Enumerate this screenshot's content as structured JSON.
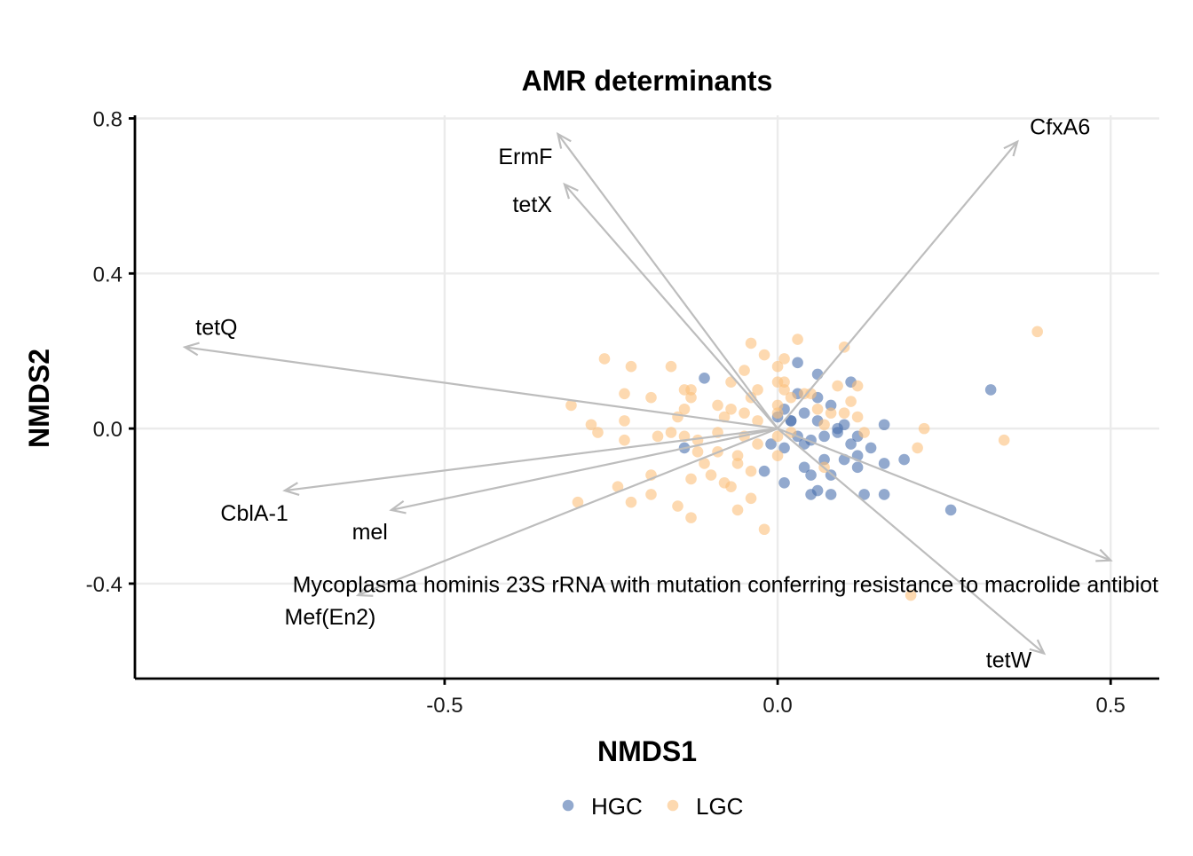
{
  "chart_data": {
    "type": "scatter",
    "title": "AMR determinants",
    "xlabel": "NMDS1",
    "ylabel": "NMDS2",
    "xlim": [
      -0.965,
      0.573
    ],
    "ylim": [
      -0.645,
      0.808
    ],
    "xticks": [
      {
        "value": -0.5,
        "label": "-0.5"
      },
      {
        "value": 0.0,
        "label": "0.0"
      },
      {
        "value": 0.5,
        "label": "0.5"
      }
    ],
    "yticks": [
      {
        "value": 0.8,
        "label": "0.8"
      },
      {
        "value": 0.4,
        "label": "0.4"
      },
      {
        "value": 0.0,
        "label": "0.0"
      },
      {
        "value": -0.4,
        "label": "-0.4"
      }
    ],
    "grid": true,
    "legend": {
      "position": "bottom"
    },
    "series": [
      {
        "name": "HGC",
        "color": "#4a6fad",
        "points": [
          [
            -0.11,
            0.13
          ],
          [
            0.03,
            0.17
          ],
          [
            0.06,
            0.14
          ],
          [
            0.11,
            0.12
          ],
          [
            0.32,
            0.1
          ],
          [
            0.03,
            0.09
          ],
          [
            0.06,
            0.08
          ],
          [
            0.08,
            0.06
          ],
          [
            0.01,
            0.05
          ],
          [
            0.04,
            0.04
          ],
          [
            0.0,
            0.03
          ],
          [
            0.02,
            0.02
          ],
          [
            0.06,
            0.02
          ],
          [
            0.1,
            0.01
          ],
          [
            0.16,
            0.01
          ],
          [
            0.09,
            -0.01
          ],
          [
            0.12,
            -0.02
          ],
          [
            0.03,
            -0.02
          ],
          [
            0.05,
            -0.03
          ],
          [
            0.07,
            -0.02
          ],
          [
            0.14,
            -0.05
          ],
          [
            -0.14,
            -0.05
          ],
          [
            -0.01,
            -0.04
          ],
          [
            0.04,
            -0.04
          ],
          [
            0.11,
            -0.04
          ],
          [
            0.01,
            -0.05
          ],
          [
            0.07,
            -0.08
          ],
          [
            0.1,
            -0.08
          ],
          [
            0.12,
            -0.07
          ],
          [
            0.19,
            -0.08
          ],
          [
            0.16,
            -0.09
          ],
          [
            0.04,
            -0.1
          ],
          [
            0.12,
            -0.1
          ],
          [
            -0.02,
            -0.11
          ],
          [
            0.05,
            -0.12
          ],
          [
            0.08,
            -0.12
          ],
          [
            0.01,
            -0.14
          ],
          [
            0.06,
            -0.16
          ],
          [
            0.08,
            -0.17
          ],
          [
            0.05,
            -0.17
          ],
          [
            0.13,
            -0.17
          ],
          [
            0.16,
            -0.17
          ],
          [
            0.26,
            -0.21
          ],
          [
            0.02,
            0.02
          ],
          [
            0.09,
            0.0
          ]
        ]
      },
      {
        "name": "LGC",
        "color": "#fcc07c",
        "points": [
          [
            0.39,
            0.25
          ],
          [
            0.03,
            0.23
          ],
          [
            -0.04,
            0.22
          ],
          [
            0.1,
            0.21
          ],
          [
            -0.26,
            0.18
          ],
          [
            -0.02,
            0.19
          ],
          [
            0.01,
            0.18
          ],
          [
            -0.22,
            0.16
          ],
          [
            -0.16,
            0.16
          ],
          [
            0.0,
            0.16
          ],
          [
            -0.05,
            0.15
          ],
          [
            -0.07,
            0.12
          ],
          [
            0.0,
            0.12
          ],
          [
            0.01,
            0.12
          ],
          [
            0.09,
            0.11
          ],
          [
            -0.14,
            0.1
          ],
          [
            -0.13,
            0.1
          ],
          [
            -0.03,
            0.1
          ],
          [
            0.12,
            0.11
          ],
          [
            -0.23,
            0.09
          ],
          [
            -0.19,
            0.08
          ],
          [
            0.01,
            0.1
          ],
          [
            0.04,
            0.09
          ],
          [
            0.05,
            0.09
          ],
          [
            0.02,
            0.08
          ],
          [
            -0.13,
            0.08
          ],
          [
            -0.04,
            0.08
          ],
          [
            0.11,
            0.07
          ],
          [
            -0.31,
            0.06
          ],
          [
            -0.09,
            0.06
          ],
          [
            -0.14,
            0.05
          ],
          [
            -0.07,
            0.05
          ],
          [
            0.0,
            0.06
          ],
          [
            0.08,
            0.04
          ],
          [
            -0.28,
            0.01
          ],
          [
            -0.23,
            0.02
          ],
          [
            -0.15,
            0.03
          ],
          [
            -0.05,
            0.04
          ],
          [
            0.0,
            0.04
          ],
          [
            0.1,
            0.04
          ],
          [
            0.12,
            0.03
          ],
          [
            -0.27,
            -0.01
          ],
          [
            -0.16,
            -0.01
          ],
          [
            -0.09,
            -0.01
          ],
          [
            0.02,
            -0.01
          ],
          [
            0.07,
            0.01
          ],
          [
            0.22,
            0.0
          ],
          [
            -0.23,
            -0.03
          ],
          [
            -0.14,
            -0.02
          ],
          [
            -0.12,
            -0.03
          ],
          [
            -0.05,
            -0.02
          ],
          [
            0.0,
            -0.02
          ],
          [
            -0.03,
            -0.04
          ],
          [
            0.34,
            -0.03
          ],
          [
            0.21,
            -0.05
          ],
          [
            -0.12,
            -0.06
          ],
          [
            -0.09,
            -0.06
          ],
          [
            -0.06,
            -0.07
          ],
          [
            0.0,
            -0.07
          ],
          [
            -0.11,
            -0.09
          ],
          [
            -0.06,
            -0.09
          ],
          [
            -0.04,
            -0.11
          ],
          [
            -0.19,
            -0.12
          ],
          [
            -0.1,
            -0.12
          ],
          [
            0.07,
            -0.1
          ],
          [
            -0.13,
            -0.13
          ],
          [
            -0.08,
            -0.14
          ],
          [
            -0.24,
            -0.15
          ],
          [
            -0.19,
            -0.17
          ],
          [
            -0.07,
            -0.15
          ],
          [
            -0.3,
            -0.19
          ],
          [
            -0.22,
            -0.19
          ],
          [
            -0.15,
            -0.2
          ],
          [
            -0.04,
            -0.18
          ],
          [
            -0.06,
            -0.21
          ],
          [
            -0.13,
            -0.23
          ],
          [
            -0.02,
            -0.26
          ],
          [
            0.2,
            -0.43
          ],
          [
            -0.03,
            0.02
          ],
          [
            0.06,
            0.05
          ],
          [
            -0.08,
            0.03
          ],
          [
            -0.18,
            -0.02
          ],
          [
            0.13,
            -0.01
          ]
        ]
      }
    ],
    "vectors": [
      {
        "label": "ErmF",
        "x": -0.33,
        "y": 0.76
      },
      {
        "label": "tetX",
        "x": -0.32,
        "y": 0.63
      },
      {
        "label": "CfxA6",
        "x": 0.36,
        "y": 0.74
      },
      {
        "label": "tetQ",
        "x": -0.89,
        "y": 0.21
      },
      {
        "label": "CblA-1",
        "x": -0.74,
        "y": -0.16
      },
      {
        "label": "mel",
        "x": -0.58,
        "y": -0.21
      },
      {
        "label": "Mycoplasma hominis 23S rRNA with mutation conferring resistance to macrolide antibiot",
        "x": 0.5,
        "y": -0.34
      },
      {
        "label": "Mef(En2)",
        "x": -0.63,
        "y": -0.43
      },
      {
        "label": "tetW",
        "x": 0.4,
        "y": -0.58
      }
    ]
  }
}
